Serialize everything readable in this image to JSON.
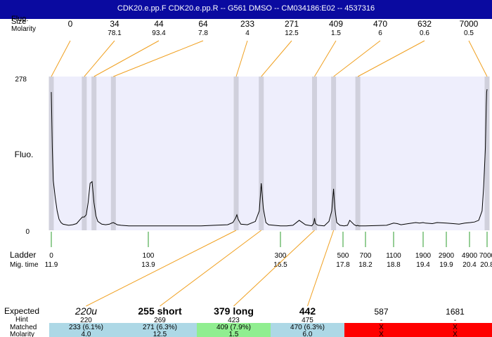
{
  "header": {
    "title": "CDK20.e.pp.F   CDK20.e.pp.R -- G561 DMSO -- CM034186:E02 -- 4537316"
  },
  "chart_data": {
    "type": "line",
    "top_row_labels": {
      "size": "Size",
      "size_overlay": "Fluo.",
      "molarity": "Molarity"
    },
    "peaks": [
      {
        "size": "0",
        "molarity": "",
        "x": 0
      },
      {
        "size": "34",
        "molarity": "78.1",
        "x": 34
      },
      {
        "size": "44",
        "molarity": "93.4",
        "x": 44
      },
      {
        "size": "64",
        "molarity": "7.8",
        "x": 64
      },
      {
        "size": "233",
        "molarity": "4",
        "x": 233
      },
      {
        "size": "271",
        "molarity": "12.5",
        "x": 271
      },
      {
        "size": "409",
        "molarity": "1.5",
        "x": 409
      },
      {
        "size": "470",
        "molarity": "6",
        "x": 470
      },
      {
        "size": "632",
        "molarity": "0.6",
        "x": 632
      },
      {
        "size": "7000",
        "molarity": "0.5",
        "x": 7000
      }
    ],
    "y_axis": {
      "label": "Fluo.",
      "max_label": "278",
      "min_label": "0",
      "ylim": [
        0,
        278
      ]
    },
    "ladder": {
      "label": "Ladder",
      "mig_label": "Mig. time",
      "marks": [
        {
          "size": "0",
          "mig": "11.9"
        },
        {
          "size": "100",
          "mig": "13.9"
        },
        {
          "size": "300",
          "mig": "16.5"
        },
        {
          "size": "500",
          "mig": "17.8"
        },
        {
          "size": "700",
          "mig": "18.2"
        },
        {
          "size": "1100",
          "mig": "18.8"
        },
        {
          "size": "1900",
          "mig": "19.4"
        },
        {
          "size": "2900",
          "mig": "19.9"
        },
        {
          "size": "4900",
          "mig": "20.4"
        },
        {
          "size": "7000",
          "mig": "20.8"
        }
      ]
    },
    "trace": {
      "x": [
        0,
        1,
        2,
        4,
        6,
        8,
        10,
        12,
        15,
        18,
        22,
        26,
        30,
        32,
        34,
        36,
        38,
        40,
        42,
        44,
        46,
        48,
        52,
        56,
        60,
        62,
        64,
        66,
        68,
        72,
        80,
        100,
        140,
        180,
        200,
        220,
        228,
        232,
        234,
        236,
        240,
        250,
        262,
        268,
        271,
        274,
        278,
        282,
        290,
        300,
        320,
        340,
        360,
        380,
        400,
        406,
        409,
        412,
        420,
        440,
        455,
        464,
        470,
        474,
        480,
        490,
        510,
        540,
        560,
        600,
        620,
        630,
        640,
        700,
        1000,
        1100,
        1200,
        1300,
        1500,
        1700,
        1800,
        1900,
        2000,
        2300,
        2500,
        2900,
        3500,
        4000,
        4500,
        5000,
        5500,
        6000,
        6400,
        6600,
        6800,
        6900,
        6950,
        7000
      ],
      "y": [
        250,
        150,
        90,
        60,
        35,
        20,
        14,
        11,
        10,
        9,
        10,
        12,
        20,
        24,
        24,
        28,
        50,
        85,
        88,
        50,
        26,
        16,
        11,
        10,
        11,
        13,
        14,
        12,
        10,
        9,
        8,
        8,
        8,
        8,
        9,
        10,
        14,
        22,
        28,
        20,
        11,
        10,
        16,
        35,
        85,
        40,
        14,
        10,
        9,
        8,
        8,
        9,
        18,
        10,
        8,
        12,
        22,
        12,
        9,
        8,
        16,
        35,
        75,
        40,
        14,
        9,
        8,
        9,
        18,
        10,
        8,
        9,
        8,
        8,
        9,
        13,
        12,
        10,
        12,
        14,
        13,
        14,
        13,
        12,
        14,
        13,
        12,
        11,
        13,
        14,
        15,
        18,
        35,
        80,
        150,
        225,
        250,
        255
      ]
    },
    "expected": {
      "label": "Expected",
      "hint_label": "Hint",
      "matched_label": "Matched",
      "molarity_label": "Molarity",
      "columns": [
        {
          "expected": "220u",
          "hint": "220",
          "matched": "233 (6.1%)",
          "molarity": "4.0",
          "status_color": "#add8e6"
        },
        {
          "expected": "255 short",
          "hint": "269",
          "matched": "271 (6.3%)",
          "molarity": "12.5",
          "status_color": "#add8e6"
        },
        {
          "expected": "379 long",
          "hint": "423",
          "matched": "409 (7.9%)",
          "molarity": "1.5",
          "status_color": "#90ee90"
        },
        {
          "expected": "442",
          "hint": "475",
          "matched": "470 (6.3%)",
          "molarity": "6.0",
          "status_color": "#add8e6"
        },
        {
          "expected": "587",
          "hint": "-",
          "matched": "X",
          "molarity": "X",
          "status_color": "#ff0000"
        },
        {
          "expected": "1681",
          "hint": "-",
          "matched": "X",
          "molarity": "X",
          "status_color": "#ff0000"
        }
      ]
    },
    "colors": {
      "header": "#0a0aa0",
      "plot_bg": "#eeeefc",
      "peak_band": "#d0d0dc",
      "connector": "#f0a020",
      "ladder_tick": "#2e9e2e",
      "trace": "#000000"
    }
  }
}
